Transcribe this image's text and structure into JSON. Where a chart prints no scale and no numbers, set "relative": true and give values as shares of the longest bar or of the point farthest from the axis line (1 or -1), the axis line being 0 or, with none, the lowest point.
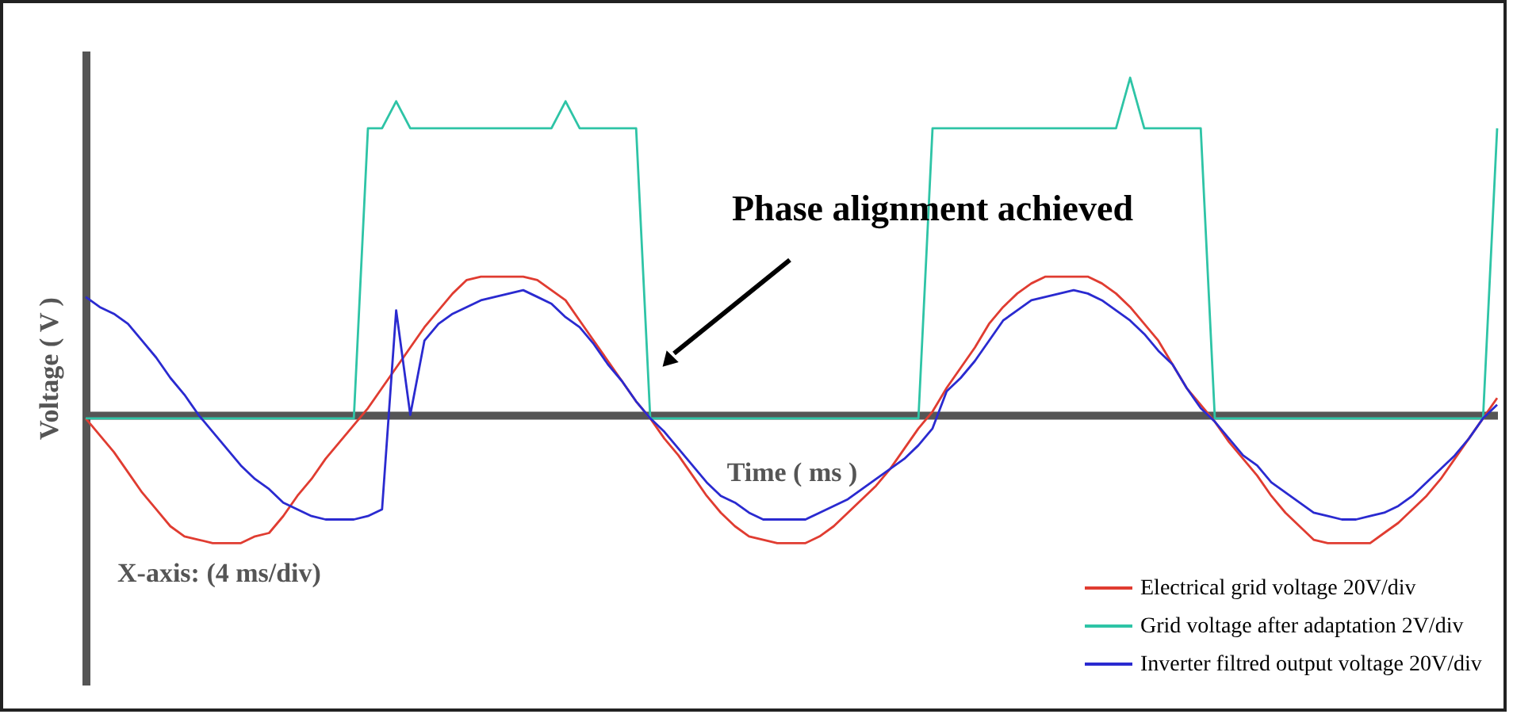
{
  "chart_data": {
    "type": "line",
    "relative": true,
    "xlabel": "Time ( ms )",
    "ylabel": "Voltage ( V )",
    "legend": "bottom right",
    "line_style": "solid",
    "annotations": [
      "Phase alignment achieved",
      "X-axis: (4 ms/div)"
    ],
    "categories": [
      null,
      null,
      null,
      null,
      null,
      null,
      null,
      null,
      null,
      null,
      null,
      null,
      null,
      null,
      null,
      null,
      null,
      null,
      null,
      null,
      null,
      null,
      null,
      null,
      null,
      null,
      null,
      null,
      null,
      null,
      null,
      null,
      null,
      null,
      null,
      null,
      null,
      null,
      null,
      null,
      null,
      null,
      null,
      null,
      null,
      null,
      null,
      null,
      null,
      null,
      null,
      null,
      null,
      null,
      null,
      null,
      null,
      null,
      null,
      null,
      null,
      null,
      null,
      null,
      null,
      null,
      null,
      null,
      null,
      null,
      null,
      null,
      null,
      null,
      null,
      null,
      null,
      null,
      null,
      null,
      null,
      null,
      null,
      null,
      null,
      null,
      null,
      null,
      null,
      null,
      null,
      null,
      null,
      null,
      null,
      null,
      null,
      null,
      null,
      null,
      null
    ],
    "series": [
      {
        "name": "Electrical grid voltage 20V/div",
        "color": "#e03c31",
        "values": [
          -0.01,
          -0.06,
          -0.11,
          -0.17,
          -0.23,
          -0.28,
          -0.33,
          -0.36,
          -0.37,
          -0.38,
          -0.38,
          -0.38,
          -0.36,
          -0.35,
          -0.3,
          -0.24,
          -0.19,
          -0.13,
          -0.08,
          -0.03,
          0.02,
          0.08,
          0.14,
          0.2,
          0.26,
          0.31,
          0.36,
          0.4,
          0.41,
          0.41,
          0.41,
          0.41,
          0.4,
          0.37,
          0.34,
          0.28,
          0.22,
          0.16,
          0.1,
          0.04,
          -0.01,
          -0.07,
          -0.12,
          -0.18,
          -0.24,
          -0.29,
          -0.33,
          -0.36,
          -0.37,
          -0.38,
          -0.38,
          -0.38,
          -0.36,
          -0.33,
          -0.29,
          -0.25,
          -0.21,
          -0.16,
          -0.1,
          -0.04,
          0.01,
          0.08,
          0.14,
          0.2,
          0.27,
          0.32,
          0.36,
          0.39,
          0.41,
          0.41,
          0.41,
          0.41,
          0.39,
          0.36,
          0.32,
          0.27,
          0.22,
          0.15,
          0.08,
          0.03,
          -0.02,
          -0.08,
          -0.13,
          -0.18,
          -0.24,
          -0.29,
          -0.33,
          -0.37,
          -0.38,
          -0.38,
          -0.38,
          -0.38,
          -0.35,
          -0.32,
          -0.28,
          -0.24,
          -0.19,
          -0.13,
          -0.07,
          -0.01,
          0.05
        ]
      },
      {
        "name": "Grid voltage after adaptation 2V/div",
        "color": "#2ec4a6",
        "values": [
          -0.01,
          -0.01,
          -0.01,
          -0.01,
          -0.01,
          -0.01,
          -0.01,
          -0.01,
          -0.01,
          -0.01,
          -0.01,
          -0.01,
          -0.01,
          -0.01,
          -0.01,
          -0.01,
          -0.01,
          -0.01,
          -0.01,
          -0.01,
          0.85,
          0.85,
          0.93,
          0.85,
          0.85,
          0.85,
          0.85,
          0.85,
          0.85,
          0.85,
          0.85,
          0.85,
          0.85,
          0.85,
          0.93,
          0.85,
          0.85,
          0.85,
          0.85,
          0.85,
          -0.01,
          -0.01,
          -0.01,
          -0.01,
          -0.01,
          -0.01,
          -0.01,
          -0.01,
          -0.01,
          -0.01,
          -0.01,
          -0.01,
          -0.01,
          -0.01,
          -0.01,
          -0.01,
          -0.01,
          -0.01,
          -0.01,
          -0.01,
          0.85,
          0.85,
          0.85,
          0.85,
          0.85,
          0.85,
          0.85,
          0.85,
          0.85,
          0.85,
          0.85,
          0.85,
          0.85,
          0.85,
          1,
          0.85,
          0.85,
          0.85,
          0.85,
          0.85,
          -0.01,
          -0.01,
          -0.01,
          -0.01,
          -0.01,
          -0.01,
          -0.01,
          -0.01,
          -0.01,
          -0.01,
          -0.01,
          -0.01,
          -0.01,
          -0.01,
          -0.01,
          -0.01,
          -0.01,
          -0.01,
          -0.01,
          -0.01,
          0.85
        ]
      },
      {
        "name": "Inverter  filtred output voltage 20V/div",
        "color": "#2a2ad0",
        "values": [
          0.35,
          0.32,
          0.3,
          0.27,
          0.22,
          0.17,
          0.11,
          0.06,
          0,
          -0.05,
          -0.1,
          -0.15,
          -0.19,
          -0.22,
          -0.26,
          -0.28,
          -0.3,
          -0.31,
          -0.31,
          -0.31,
          -0.3,
          -0.28,
          0.31,
          0,
          0.22,
          0.27,
          0.3,
          0.32,
          0.34,
          0.35,
          0.36,
          0.37,
          0.35,
          0.33,
          0.29,
          0.26,
          0.21,
          0.15,
          0.1,
          0.04,
          -0.01,
          -0.05,
          -0.1,
          -0.15,
          -0.2,
          -0.24,
          -0.26,
          -0.29,
          -0.31,
          -0.31,
          -0.31,
          -0.31,
          -0.29,
          -0.27,
          -0.25,
          -0.22,
          -0.19,
          -0.16,
          -0.13,
          -0.09,
          -0.04,
          0.07,
          0.11,
          0.16,
          0.22,
          0.28,
          0.31,
          0.34,
          0.35,
          0.36,
          0.37,
          0.36,
          0.34,
          0.31,
          0.28,
          0.24,
          0.19,
          0.15,
          0.08,
          0.02,
          -0.02,
          -0.07,
          -0.12,
          -0.15,
          -0.2,
          -0.23,
          -0.26,
          -0.29,
          -0.3,
          -0.31,
          -0.31,
          -0.3,
          -0.29,
          -0.27,
          -0.24,
          -0.2,
          -0.16,
          -0.12,
          -0.07,
          -0.01,
          0.03
        ]
      }
    ]
  }
}
